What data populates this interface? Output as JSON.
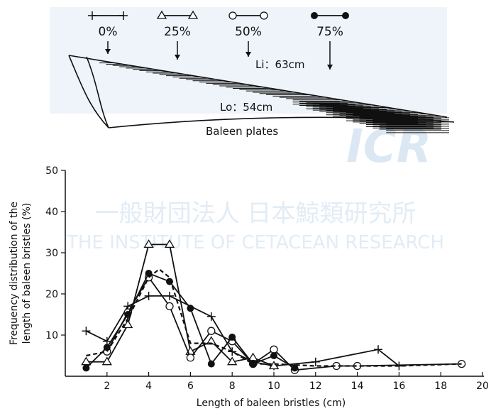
{
  "watermark": {
    "logo": "ICR",
    "name_ja": "一般財団法人 日本鯨類研究所",
    "name_en": "THE INSTITUTE OF CETACEAN RESEARCH"
  },
  "diagram": {
    "labels": [
      "Li：63cm",
      "Lo：54cm",
      "Baleen plates"
    ]
  },
  "chart_data": {
    "type": "line",
    "x_label": "Length of baleen bristles (cm)",
    "y_label": [
      "Frequency distribution of the",
      "length of baleen bristles (%)"
    ],
    "xlim": [
      0,
      20
    ],
    "ylim": [
      0,
      50
    ],
    "xticks": [
      2,
      4,
      6,
      8,
      10,
      12,
      14,
      16,
      18,
      20
    ],
    "yticks": [
      10,
      20,
      30,
      40,
      50
    ],
    "series": [
      {
        "name": "0%",
        "marker": "plus",
        "color": "#111111",
        "x": [
          1,
          2,
          3,
          4,
          5,
          7,
          8,
          9,
          10,
          12,
          15,
          16
        ],
        "values": [
          11,
          8.5,
          17,
          19.5,
          19.5,
          14.5,
          6,
          3.5,
          2.5,
          3.5,
          6.5,
          2.5
        ]
      },
      {
        "name": "25%",
        "marker": "triangle",
        "color": "#111111",
        "x": [
          1,
          2,
          3,
          4,
          5,
          6,
          7,
          8,
          9,
          10
        ],
        "values": [
          3.5,
          3.5,
          12.5,
          32,
          32,
          6,
          8.5,
          3.5,
          4.5,
          2.5
        ]
      },
      {
        "name": "50%",
        "marker": "circle-open",
        "color": "#111111",
        "x": [
          2,
          3,
          4,
          5,
          6,
          7,
          8,
          9,
          10,
          11,
          13,
          14,
          19
        ],
        "values": [
          6,
          15.5,
          24,
          17,
          4.5,
          11,
          8.5,
          3,
          6.5,
          1.5,
          2.5,
          2.5,
          3
        ]
      },
      {
        "name": "75%",
        "marker": "circle-filled",
        "color": "#111111",
        "x": [
          1,
          2,
          3,
          4,
          5,
          6,
          7,
          8,
          9,
          10,
          11
        ],
        "values": [
          2,
          7,
          15,
          25,
          23,
          16.5,
          3,
          9.5,
          3,
          5,
          2
        ]
      },
      {
        "marker": "none",
        "dash": true,
        "color": "#111111",
        "x": [
          1,
          2,
          3,
          4,
          4.5,
          5,
          6,
          7,
          8,
          9,
          10,
          12,
          14,
          16,
          19
        ],
        "values": [
          5,
          6,
          14,
          24,
          26,
          24,
          8,
          8,
          6,
          3,
          3,
          2.5,
          2.5,
          2.5,
          3
        ]
      }
    ]
  }
}
